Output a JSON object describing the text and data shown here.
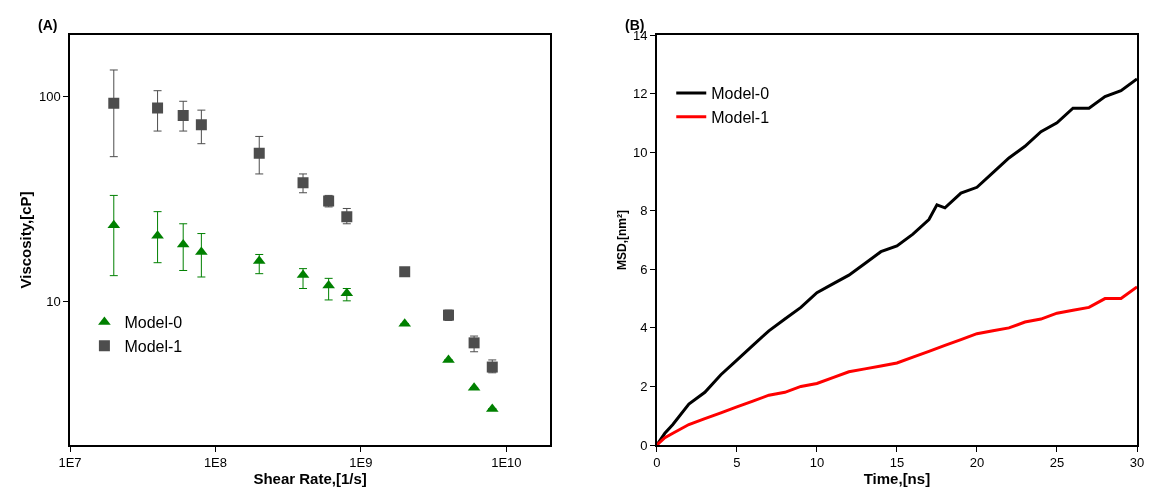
{
  "chart_data": [
    {
      "type": "scatter",
      "title": "(A)",
      "xlabel": "Shear Rate,[1/s]",
      "ylabel": "Viscosity,[cP]",
      "log": "xy",
      "grid": false,
      "legend": "bottom left",
      "xlim": [
        10000000.0,
        20000000000.0
      ],
      "xticks": [
        {
          "value": 10000000.0,
          "label": "1E7"
        },
        {
          "value": 100000000.0,
          "label": "1E8"
        },
        {
          "value": 1000000000.0,
          "label": "1E9"
        },
        {
          "value": 10000000000.0,
          "label": "1E10"
        }
      ],
      "ylim": [
        2,
        200
      ],
      "yticks": [
        10,
        100
      ],
      "x": [
        20000000.0,
        40000000.0,
        60000000.0,
        80000000.0,
        200000000.0,
        400000000.0,
        600000000.0,
        800000000.0,
        2000000000.0,
        4000000000.0,
        6000000000.0,
        8000000000.0
      ],
      "series": [
        {
          "name": "Model-0",
          "color": "#008000",
          "marker": "triangle",
          "values": [
            23.6,
            21,
            19,
            17.5,
            15.8,
            13.5,
            12,
            11,
            7.8,
            5.2,
            3.8,
            3.0
          ],
          "errors": [
            [
              13.4,
              33
            ],
            [
              15.5,
              27.5
            ],
            [
              14.2,
              24
            ],
            [
              13.2,
              21.5
            ],
            [
              13.7,
              17
            ],
            [
              11.6,
              14.5
            ],
            [
              10.2,
              13
            ],
            [
              10.1,
              11.6
            ],
            null,
            null,
            null,
            null
          ]
        },
        {
          "name": "Model-1",
          "color": "#4d4d4d",
          "marker": "square",
          "values": [
            93,
            88,
            81,
            73,
            53,
            38,
            31,
            26,
            14,
            8.6,
            6.3,
            4.8
          ],
          "errors": [
            [
              51,
              135
            ],
            [
              68,
              107
            ],
            [
              68,
              95
            ],
            [
              59,
              86
            ],
            [
              42,
              64
            ],
            [
              34,
              42
            ],
            [
              29,
              33
            ],
            [
              24,
              28.5
            ],
            null,
            [
              8.1,
              9.1
            ],
            [
              5.7,
              6.8
            ],
            [
              4.5,
              5.2
            ]
          ]
        }
      ]
    },
    {
      "type": "line",
      "title": "(B)",
      "xlabel": "Time,[ns]",
      "ylabel": "MSD,[nm²]",
      "grid": false,
      "legend": "top left",
      "marker": "none",
      "xlim": [
        0,
        30
      ],
      "xticks": [
        0,
        5,
        10,
        15,
        20,
        25,
        30
      ],
      "ylim": [
        0,
        14
      ],
      "yticks": [
        0,
        2,
        4,
        6,
        8,
        10,
        12,
        14
      ],
      "series": [
        {
          "name": "Model-0",
          "color": "#000000",
          "x": [
            0,
            0.5,
            1,
            2,
            3,
            4,
            5,
            6,
            7,
            8,
            9,
            10,
            11,
            12,
            13,
            14,
            15,
            16,
            17,
            17.5,
            18,
            19,
            20,
            21,
            22,
            23,
            24,
            25,
            26,
            27,
            28,
            29,
            30
          ],
          "values": [
            0,
            0.4,
            0.7,
            1.4,
            1.8,
            2.4,
            2.9,
            3.4,
            3.9,
            4.3,
            4.7,
            5.2,
            5.5,
            5.8,
            6.2,
            6.6,
            6.8,
            7.2,
            7.7,
            8.2,
            8.1,
            8.6,
            8.8,
            9.3,
            9.8,
            10.2,
            10.7,
            11.0,
            11.5,
            11.5,
            11.9,
            12.1,
            12.5
          ]
        },
        {
          "name": "Model-1",
          "color": "#ff0000",
          "x": [
            0,
            0.5,
            1,
            2,
            3,
            4,
            5,
            6,
            7,
            8,
            9,
            10,
            11,
            12,
            13,
            14,
            15,
            16,
            17,
            18,
            19,
            20,
            21,
            22,
            23,
            24,
            25,
            26,
            27,
            28,
            29,
            30
          ],
          "values": [
            0,
            0.25,
            0.4,
            0.7,
            0.9,
            1.1,
            1.3,
            1.5,
            1.7,
            1.8,
            2.0,
            2.1,
            2.3,
            2.5,
            2.6,
            2.7,
            2.8,
            3.0,
            3.2,
            3.4,
            3.6,
            3.8,
            3.9,
            4.0,
            4.2,
            4.3,
            4.5,
            4.6,
            4.7,
            5.0,
            5.0,
            5.4
          ]
        }
      ]
    }
  ]
}
